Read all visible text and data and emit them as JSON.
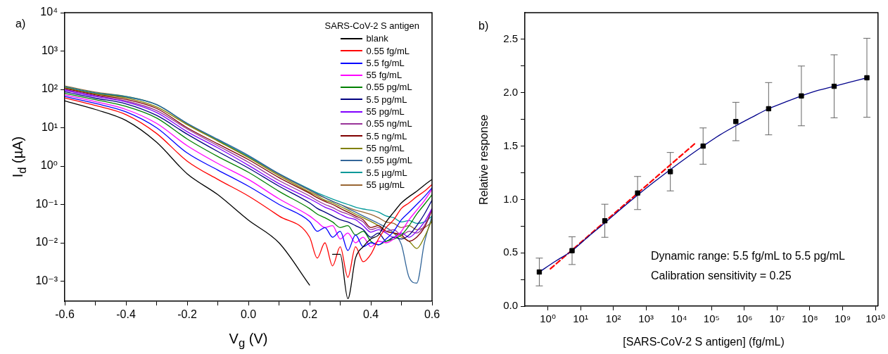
{
  "chart_data": [
    {
      "type": "line",
      "log": "y",
      "xlabel": "V$_{g}$ (V)",
      "ylabel": "I$_{d}$ (µA)",
      "legend": "top right",
      "legend_title": "SARS-CoV-2 S antigen",
      "annotations": [
        "a)"
      ],
      "xlim": [
        -0.6,
        0.6
      ],
      "ylim": [
        0.0003,
        10000
      ],
      "xticks": [
        -0.6,
        {
          "value": -0.5,
          "label": null
        },
        -0.4,
        {
          "value": -0.3,
          "label": null
        },
        -0.2,
        {
          "value": -0.1,
          "label": null
        },
        {
          "value": 0,
          "label": "0.0"
        },
        {
          "value": 0.1,
          "label": null
        },
        0.2,
        {
          "value": 0.3,
          "label": null
        },
        0.4,
        {
          "value": 0.5,
          "label": null
        },
        0.6
      ],
      "yticks": [
        {
          "value": 0.001,
          "label": "10⁻³"
        },
        {
          "value": 0.01,
          "label": "10⁻²"
        },
        {
          "value": 0.1,
          "label": "10⁻¹"
        },
        {
          "value": 1,
          "label": "10⁰"
        },
        {
          "value": 10,
          "label": "10¹"
        },
        {
          "value": 100,
          "label": "10²"
        },
        {
          "value": 1000,
          "label": "10³"
        },
        {
          "value": 10000,
          "label": "10⁴"
        }
      ],
      "x": [
        -0.6,
        -0.5,
        -0.4,
        -0.3,
        -0.2,
        -0.1,
        0,
        0.1,
        0.2,
        0.225,
        0.25,
        0.275,
        0.3,
        0.325,
        0.35,
        0.375,
        0.4,
        0.425,
        0.45,
        0.475,
        0.5,
        0.525,
        0.55,
        0.575,
        0.6
      ],
      "series": [
        {
          "name": "blank",
          "color": "#000000",
          "values": [
            50,
            30,
            15.5,
            4.2,
            0.63,
            0.18,
            0.039,
            0.01,
            0.00079,
            null,
            null,
            0.005,
            0.005,
            0.00035,
            0.004,
            0.0079,
            0.0126,
            0.016,
            0.035,
            0.063,
            0.11,
            0.16,
            0.22,
            0.32,
            0.45
          ]
        },
        {
          "name": "0.55 fg/mL",
          "color": "#ff0000",
          "values": [
            60,
            38,
            22,
            7.1,
            1.35,
            0.45,
            0.166,
            0.05,
            0.014,
            0.004,
            0.01,
            0.0025,
            0.0079,
            0.00126,
            0.0079,
            0.0032,
            0.005,
            0.0126,
            0.025,
            0.04,
            0.079,
            0.11,
            0.16,
            0.22,
            0.33
          ]
        },
        {
          "name": "5.5 fg/mL",
          "color": "#0000ff",
          "values": [
            65,
            43,
            26,
            10,
            2.2,
            0.79,
            0.3,
            0.1,
            0.036,
            0.02,
            0.025,
            0.014,
            0.02,
            0.0063,
            0.016,
            0.0079,
            0.01,
            0.0089,
            0.0126,
            0.02,
            0.04,
            0.063,
            0.1,
            0.16,
            0.27
          ]
        },
        {
          "name": "55 fg/mL",
          "color": "#ff00ff",
          "values": [
            72,
            48,
            30,
            13,
            3.4,
            1.17,
            0.45,
            0.14,
            0.05,
            0.035,
            0.025,
            0.028,
            0.0126,
            0.018,
            0.01,
            0.014,
            0.0079,
            0.011,
            0.01,
            0.0126,
            0.02,
            0.04,
            0.071,
            0.126,
            0.25
          ]
        },
        {
          "name": "0.55 pg/mL",
          "color": "#008000",
          "values": [
            79,
            54,
            36,
            18,
            5.1,
            1.78,
            0.69,
            0.22,
            0.078,
            0.056,
            0.045,
            0.035,
            0.025,
            0.028,
            0.016,
            0.02,
            0.011,
            0.0089,
            0.011,
            0.0126,
            0.016,
            0.028,
            0.056,
            0.1,
            0.18
          ]
        },
        {
          "name": "5.5 pg/mL",
          "color": "#000080",
          "values": [
            87,
            59,
            42,
            21,
            6.8,
            2.4,
            0.89,
            0.3,
            0.11,
            0.079,
            0.063,
            0.05,
            0.04,
            0.035,
            0.028,
            0.022,
            0.014,
            0.018,
            0.011,
            0.014,
            0.0126,
            0.016,
            0.028,
            0.056,
            0.13
          ]
        },
        {
          "name": "55 pg/mL",
          "color": "#8000ff",
          "values": [
            95,
            65,
            47,
            25,
            7.9,
            3,
            1.05,
            0.35,
            0.14,
            0.11,
            0.085,
            0.071,
            0.056,
            0.045,
            0.04,
            0.028,
            0.019,
            0.022,
            0.018,
            0.014,
            0.018,
            0.014,
            0.02,
            0.035,
            0.079
          ]
        },
        {
          "name": "0.55 ng/mL",
          "color": "#993399",
          "values": [
            100,
            69,
            50,
            28,
            9.3,
            3.4,
            1.26,
            0.42,
            0.166,
            0.126,
            0.1,
            0.083,
            0.066,
            0.056,
            0.045,
            0.035,
            0.022,
            0.025,
            0.02,
            0.022,
            0.016,
            0.02,
            0.018,
            0.028,
            0.076
          ]
        },
        {
          "name": "5.5 ng/mL",
          "color": "#800000",
          "values": [
            105,
            72,
            55,
            32,
            10,
            3.8,
            1.48,
            0.5,
            0.195,
            0.15,
            0.12,
            0.1,
            0.079,
            0.063,
            0.05,
            0.04,
            0.025,
            0.028,
            0.02,
            0.018,
            0.016,
            0.011,
            0.014,
            0.025,
            0.071
          ]
        },
        {
          "name": "55 ng/mL",
          "color": "#808000",
          "values": [
            110,
            76,
            60,
            35,
            12,
            4.5,
            1.66,
            0.56,
            0.21,
            0.166,
            0.13,
            0.11,
            0.089,
            0.071,
            0.056,
            0.045,
            0.036,
            0.028,
            0.02,
            0.018,
            0.014,
            0.011,
            0.0071,
            0.014,
            0.04
          ]
        },
        {
          "name": "0.55 µg/mL",
          "color": "#336699",
          "values": [
            115,
            79,
            63,
            40,
            13,
            5,
            1.9,
            0.63,
            0.24,
            0.19,
            0.15,
            0.12,
            0.1,
            0.079,
            0.063,
            0.05,
            0.04,
            0.032,
            0.025,
            0.018,
            0.0089,
            0.00126,
            0.00089,
            0.01,
            0.05
          ]
        },
        {
          "name": "5.5 µg/mL",
          "color": "#009999",
          "values": [
            118,
            81,
            65,
            40,
            13,
            4.8,
            1.8,
            0.63,
            0.25,
            0.2,
            0.166,
            0.138,
            0.117,
            0.1,
            0.085,
            0.076,
            0.071,
            0.063,
            0.05,
            0.045,
            0.035,
            0.038,
            0.032,
            0.035,
            0.05
          ]
        },
        {
          "name": "55 µg/mL",
          "color": "#996633",
          "values": [
            123,
            85,
            66,
            40,
            12.6,
            4.7,
            1.74,
            0.6,
            0.23,
            0.18,
            0.148,
            0.12,
            0.1,
            0.083,
            0.071,
            0.063,
            0.055,
            0.045,
            0.035,
            0.032,
            0.025,
            0.028,
            0.022,
            0.025,
            0.035
          ]
        }
      ]
    },
    {
      "type": "scatter",
      "log": "x",
      "xlabel": "[SARS-CoV-2 S antigen] (fg/mL)",
      "ylabel": "Relative response",
      "annotations": [
        "b)",
        "Dynamic range: 5.5 fg/mL to 5.5 pg/mL",
        "Calibration sensitivity = 0.25"
      ],
      "xlim": [
        0.2,
        12000000000
      ],
      "ylim": [
        0,
        2.75
      ],
      "xticks": [
        {
          "value": 1,
          "label": "10⁰"
        },
        {
          "value": 10,
          "label": "10¹"
        },
        {
          "value": 100,
          "label": "10²"
        },
        {
          "value": 1000,
          "label": "10³"
        },
        {
          "value": 10000,
          "label": "10⁴"
        },
        {
          "value": 100000,
          "label": "10⁵"
        },
        {
          "value": 1000000,
          "label": "10⁶"
        },
        {
          "value": 10000000,
          "label": "10⁷"
        },
        {
          "value": 100000000,
          "label": "10⁸"
        },
        {
          "value": 1000000000,
          "label": "10⁹"
        },
        {
          "value": 10000000000,
          "label": "10¹⁰"
        }
      ],
      "yticks": [
        {
          "value": 0,
          "label": "0.0"
        },
        {
          "value": 0.25,
          "label": null
        },
        0.5,
        {
          "value": 0.75,
          "label": null
        },
        {
          "value": 1,
          "label": "1.0"
        },
        {
          "value": 1.25,
          "label": null
        },
        1.5,
        {
          "value": 1.75,
          "label": null
        },
        {
          "value": 2,
          "label": "2.0"
        },
        {
          "value": 2.25,
          "label": null
        },
        2.5
      ],
      "series": [
        {
          "type": "line",
          "color": "#00008b",
          "x": [
            0.55,
            1.7,
            5.5,
            17,
            55,
            170,
            550,
            1700,
            5500,
            17000,
            55000,
            170000,
            550000,
            1700000,
            5500000,
            17000000,
            55000000,
            170000000,
            550000000,
            1700000000,
            5500000000
          ],
          "values": [
            0.32,
            0.42,
            0.52,
            0.65,
            0.78,
            0.91,
            1.04,
            1.16,
            1.28,
            1.39,
            1.5,
            1.6,
            1.69,
            1.77,
            1.85,
            1.91,
            1.97,
            2.02,
            2.06,
            2.1,
            2.14
          ]
        },
        {
          "type": "line",
          "color": "#ff0000",
          "line_style": "dashed",
          "x": [
            1.2,
            30000
          ],
          "values": [
            0.35,
            1.52
          ]
        },
        {
          "type": "scatter",
          "color": "#000000",
          "marker": "square",
          "x": [
            0.55,
            5.5,
            55,
            550,
            5500,
            55000,
            550000,
            5500000,
            55000000,
            550000000,
            5500000000
          ],
          "values": [
            0.32,
            0.52,
            0.8,
            1.06,
            1.26,
            1.5,
            1.73,
            1.85,
            1.97,
            2.06,
            2.14
          ],
          "errors": [
            0.13,
            0.13,
            0.155,
            0.155,
            0.18,
            0.17,
            0.18,
            0.245,
            0.28,
            0.295,
            0.37
          ]
        }
      ]
    }
  ]
}
